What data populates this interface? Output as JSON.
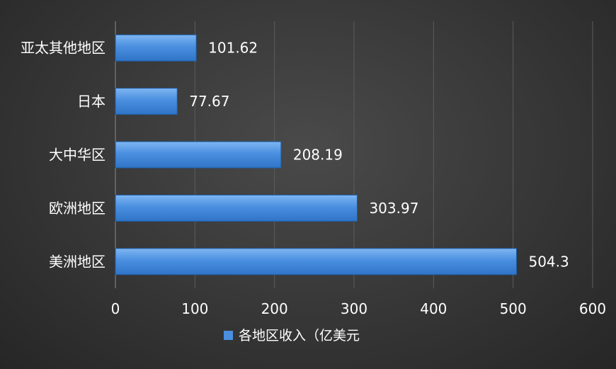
{
  "chart_data": {
    "type": "bar",
    "orientation": "horizontal",
    "categories": [
      "亚太其他地区",
      "日本",
      "大中华区",
      "欧洲地区",
      "美洲地区"
    ],
    "series": [
      {
        "name": "各地区收入（亿美元",
        "values": [
          101.62,
          77.67,
          208.19,
          303.97,
          504.3
        ],
        "color": "#4a8fe0"
      }
    ],
    "data_labels": [
      "101.62",
      "77.67",
      "208.19",
      "303.97",
      "504.3"
    ],
    "x_ticks": [
      "0",
      "100",
      "200",
      "300",
      "400",
      "500",
      "600"
    ],
    "xlim": [
      0,
      600
    ],
    "grid": true,
    "legend_position": "bottom",
    "title": "",
    "xlabel": "",
    "ylabel": ""
  }
}
